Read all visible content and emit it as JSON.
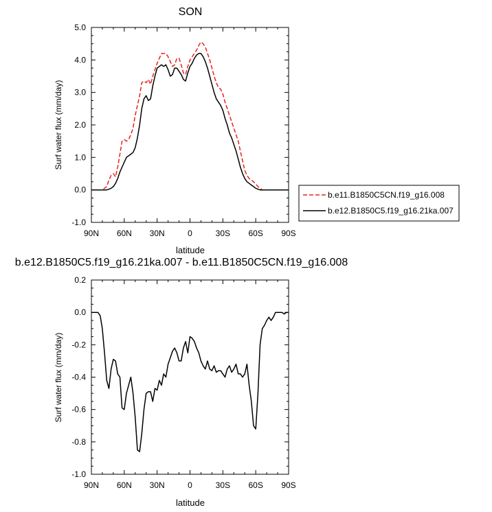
{
  "chart_data": [
    {
      "type": "line",
      "title": "SON",
      "xlabel": "latitude",
      "ylabel": "Surf water flux (mm/day)",
      "xlim": [
        90,
        -90
      ],
      "ylim": [
        -1.0,
        5.0
      ],
      "x_ticks": [
        90,
        60,
        30,
        0,
        -30,
        -60,
        -90
      ],
      "x_tick_labels": [
        "90N",
        "60N",
        "30N",
        "0",
        "30S",
        "60S",
        "90S"
      ],
      "y_ticks": [
        -1.0,
        0.0,
        1.0,
        2.0,
        3.0,
        4.0,
        5.0
      ],
      "y_tick_labels": [
        "-1.0",
        "0.0",
        "1.0",
        "2.0",
        "3.0",
        "4.0",
        "5.0"
      ],
      "grid": false,
      "legend_position": "right",
      "series": [
        {
          "name": "b.e11.B1850C5CN.f19_g16.008",
          "color": "#e8201a",
          "dash": "dashed",
          "x": [
            90,
            80,
            76,
            74,
            72,
            70,
            68,
            66,
            64,
            62,
            60,
            58,
            56,
            54,
            52,
            50,
            48,
            46,
            44,
            42,
            40,
            38,
            36,
            34,
            32,
            30,
            28,
            26,
            24,
            22,
            20,
            18,
            16,
            14,
            12,
            10,
            8,
            6,
            4,
            2,
            0,
            -2,
            -4,
            -6,
            -8,
            -10,
            -12,
            -14,
            -16,
            -18,
            -20,
            -22,
            -24,
            -26,
            -28,
            -30,
            -32,
            -34,
            -36,
            -38,
            -40,
            -42,
            -44,
            -46,
            -48,
            -50,
            -52,
            -54,
            -56,
            -58,
            -60,
            -62,
            -64,
            -66,
            -68,
            -70,
            -72,
            -74,
            -76,
            -78,
            -80,
            -84,
            -90
          ],
          "values": [
            0.0,
            0.0,
            0.1,
            0.3,
            0.45,
            0.5,
            0.4,
            0.7,
            1.1,
            1.5,
            1.55,
            1.5,
            1.55,
            1.7,
            1.9,
            2.3,
            2.6,
            2.9,
            3.3,
            3.35,
            3.3,
            3.4,
            3.25,
            3.5,
            3.7,
            3.9,
            4.05,
            4.2,
            4.2,
            4.2,
            4.1,
            3.95,
            3.8,
            3.85,
            4.05,
            4.05,
            3.85,
            3.6,
            3.55,
            3.8,
            4.0,
            4.1,
            4.2,
            4.3,
            4.45,
            4.55,
            4.5,
            4.4,
            4.2,
            4.0,
            3.75,
            3.5,
            3.3,
            3.15,
            3.1,
            2.95,
            2.7,
            2.5,
            2.3,
            2.1,
            1.9,
            1.7,
            1.5,
            1.2,
            0.9,
            0.6,
            0.45,
            0.35,
            0.3,
            0.25,
            0.18,
            0.1,
            0.05,
            0.0,
            0.0,
            0.0,
            0.0,
            0.0,
            0.0,
            0.0,
            0.0,
            0.0,
            0.0
          ]
        },
        {
          "name": "b.e12.B1850C5.f19_g16.21ka.007",
          "color": "#000000",
          "dash": "solid",
          "x": [
            90,
            80,
            76,
            74,
            72,
            70,
            68,
            66,
            64,
            62,
            60,
            58,
            56,
            54,
            52,
            50,
            48,
            46,
            44,
            42,
            40,
            38,
            36,
            34,
            32,
            30,
            28,
            26,
            24,
            22,
            20,
            18,
            16,
            14,
            12,
            10,
            8,
            6,
            4,
            2,
            0,
            -2,
            -4,
            -6,
            -8,
            -10,
            -12,
            -14,
            -16,
            -18,
            -20,
            -22,
            -24,
            -26,
            -28,
            -30,
            -32,
            -34,
            -36,
            -38,
            -40,
            -42,
            -44,
            -46,
            -48,
            -50,
            -52,
            -54,
            -56,
            -58,
            -60,
            -62,
            -64,
            -66,
            -68,
            -70,
            -72,
            -74,
            -76,
            -78,
            -80,
            -84,
            -90
          ],
          "values": [
            0.0,
            0.0,
            0.0,
            0.02,
            0.05,
            0.1,
            0.2,
            0.35,
            0.55,
            0.7,
            0.85,
            1.0,
            1.05,
            1.1,
            1.15,
            1.3,
            1.6,
            2.0,
            2.5,
            2.8,
            2.9,
            2.75,
            2.8,
            3.2,
            3.5,
            3.75,
            3.8,
            3.85,
            3.8,
            3.85,
            3.7,
            3.5,
            3.55,
            3.75,
            3.75,
            3.65,
            3.55,
            3.4,
            3.35,
            3.6,
            3.8,
            3.9,
            4.05,
            4.15,
            4.2,
            4.2,
            4.1,
            3.95,
            3.75,
            3.5,
            3.25,
            3.0,
            2.8,
            2.7,
            2.6,
            2.45,
            2.2,
            2.0,
            1.75,
            1.6,
            1.4,
            1.2,
            0.95,
            0.7,
            0.5,
            0.35,
            0.25,
            0.2,
            0.15,
            0.1,
            0.05,
            0.02,
            0.0,
            0.0,
            0.0,
            0.0,
            0.0,
            0.0,
            0.0,
            0.0,
            0.0,
            0.0,
            0.0
          ]
        }
      ]
    },
    {
      "type": "line",
      "title": "b.e12.B1850C5.f19_g16.21ka.007 - b.e11.B1850C5CN.f19_g16.008",
      "xlabel": "latitude",
      "ylabel": "Surf water flux (mm/day)",
      "xlim": [
        90,
        -90
      ],
      "ylim": [
        -1.0,
        0.2
      ],
      "x_ticks": [
        90,
        60,
        30,
        0,
        -30,
        -60,
        -90
      ],
      "x_tick_labels": [
        "90N",
        "60N",
        "30N",
        "0",
        "30S",
        "60S",
        "90S"
      ],
      "y_ticks": [
        -1.0,
        -0.8,
        -0.6,
        -0.4,
        -0.2,
        0.0,
        0.2
      ],
      "y_tick_labels": [
        "-1.0",
        "-0.8",
        "-0.6",
        "-0.4",
        "-0.2",
        "0.0",
        "0.2"
      ],
      "grid": false,
      "series": [
        {
          "color": "#000000",
          "dash": "solid",
          "x": [
            90,
            86,
            84,
            82,
            80,
            78,
            76,
            74,
            72,
            70,
            68,
            66,
            64,
            62,
            60,
            58,
            56,
            54,
            52,
            50,
            48,
            46,
            44,
            42,
            40,
            38,
            36,
            34,
            32,
            30,
            28,
            26,
            24,
            22,
            20,
            18,
            16,
            14,
            12,
            10,
            8,
            6,
            4,
            2,
            0,
            -2,
            -4,
            -6,
            -8,
            -10,
            -12,
            -14,
            -16,
            -18,
            -20,
            -22,
            -24,
            -26,
            -28,
            -30,
            -32,
            -34,
            -36,
            -38,
            -40,
            -42,
            -44,
            -46,
            -48,
            -50,
            -52,
            -54,
            -56,
            -58,
            -60,
            -62,
            -64,
            -66,
            -68,
            -70,
            -72,
            -74,
            -76,
            -78,
            -80,
            -82,
            -84,
            -86,
            -88,
            -90
          ],
          "values": [
            0.0,
            0.0,
            0.0,
            -0.02,
            -0.1,
            -0.25,
            -0.42,
            -0.47,
            -0.35,
            -0.29,
            -0.3,
            -0.38,
            -0.4,
            -0.59,
            -0.6,
            -0.5,
            -0.45,
            -0.4,
            -0.5,
            -0.65,
            -0.85,
            -0.86,
            -0.75,
            -0.6,
            -0.5,
            -0.49,
            -0.49,
            -0.55,
            -0.47,
            -0.48,
            -0.42,
            -0.45,
            -0.38,
            -0.4,
            -0.32,
            -0.28,
            -0.24,
            -0.22,
            -0.25,
            -0.3,
            -0.3,
            -0.22,
            -0.18,
            -0.25,
            -0.15,
            -0.16,
            -0.18,
            -0.22,
            -0.25,
            -0.3,
            -0.33,
            -0.35,
            -0.3,
            -0.35,
            -0.36,
            -0.33,
            -0.37,
            -0.36,
            -0.36,
            -0.38,
            -0.4,
            -0.35,
            -0.33,
            -0.37,
            -0.35,
            -0.32,
            -0.38,
            -0.38,
            -0.4,
            -0.38,
            -0.32,
            -0.45,
            -0.55,
            -0.7,
            -0.72,
            -0.5,
            -0.2,
            -0.1,
            -0.08,
            -0.05,
            -0.03,
            -0.05,
            -0.03,
            0.0,
            0.0,
            0.0,
            0.0,
            -0.01,
            0.0,
            0.0
          ]
        }
      ]
    }
  ]
}
